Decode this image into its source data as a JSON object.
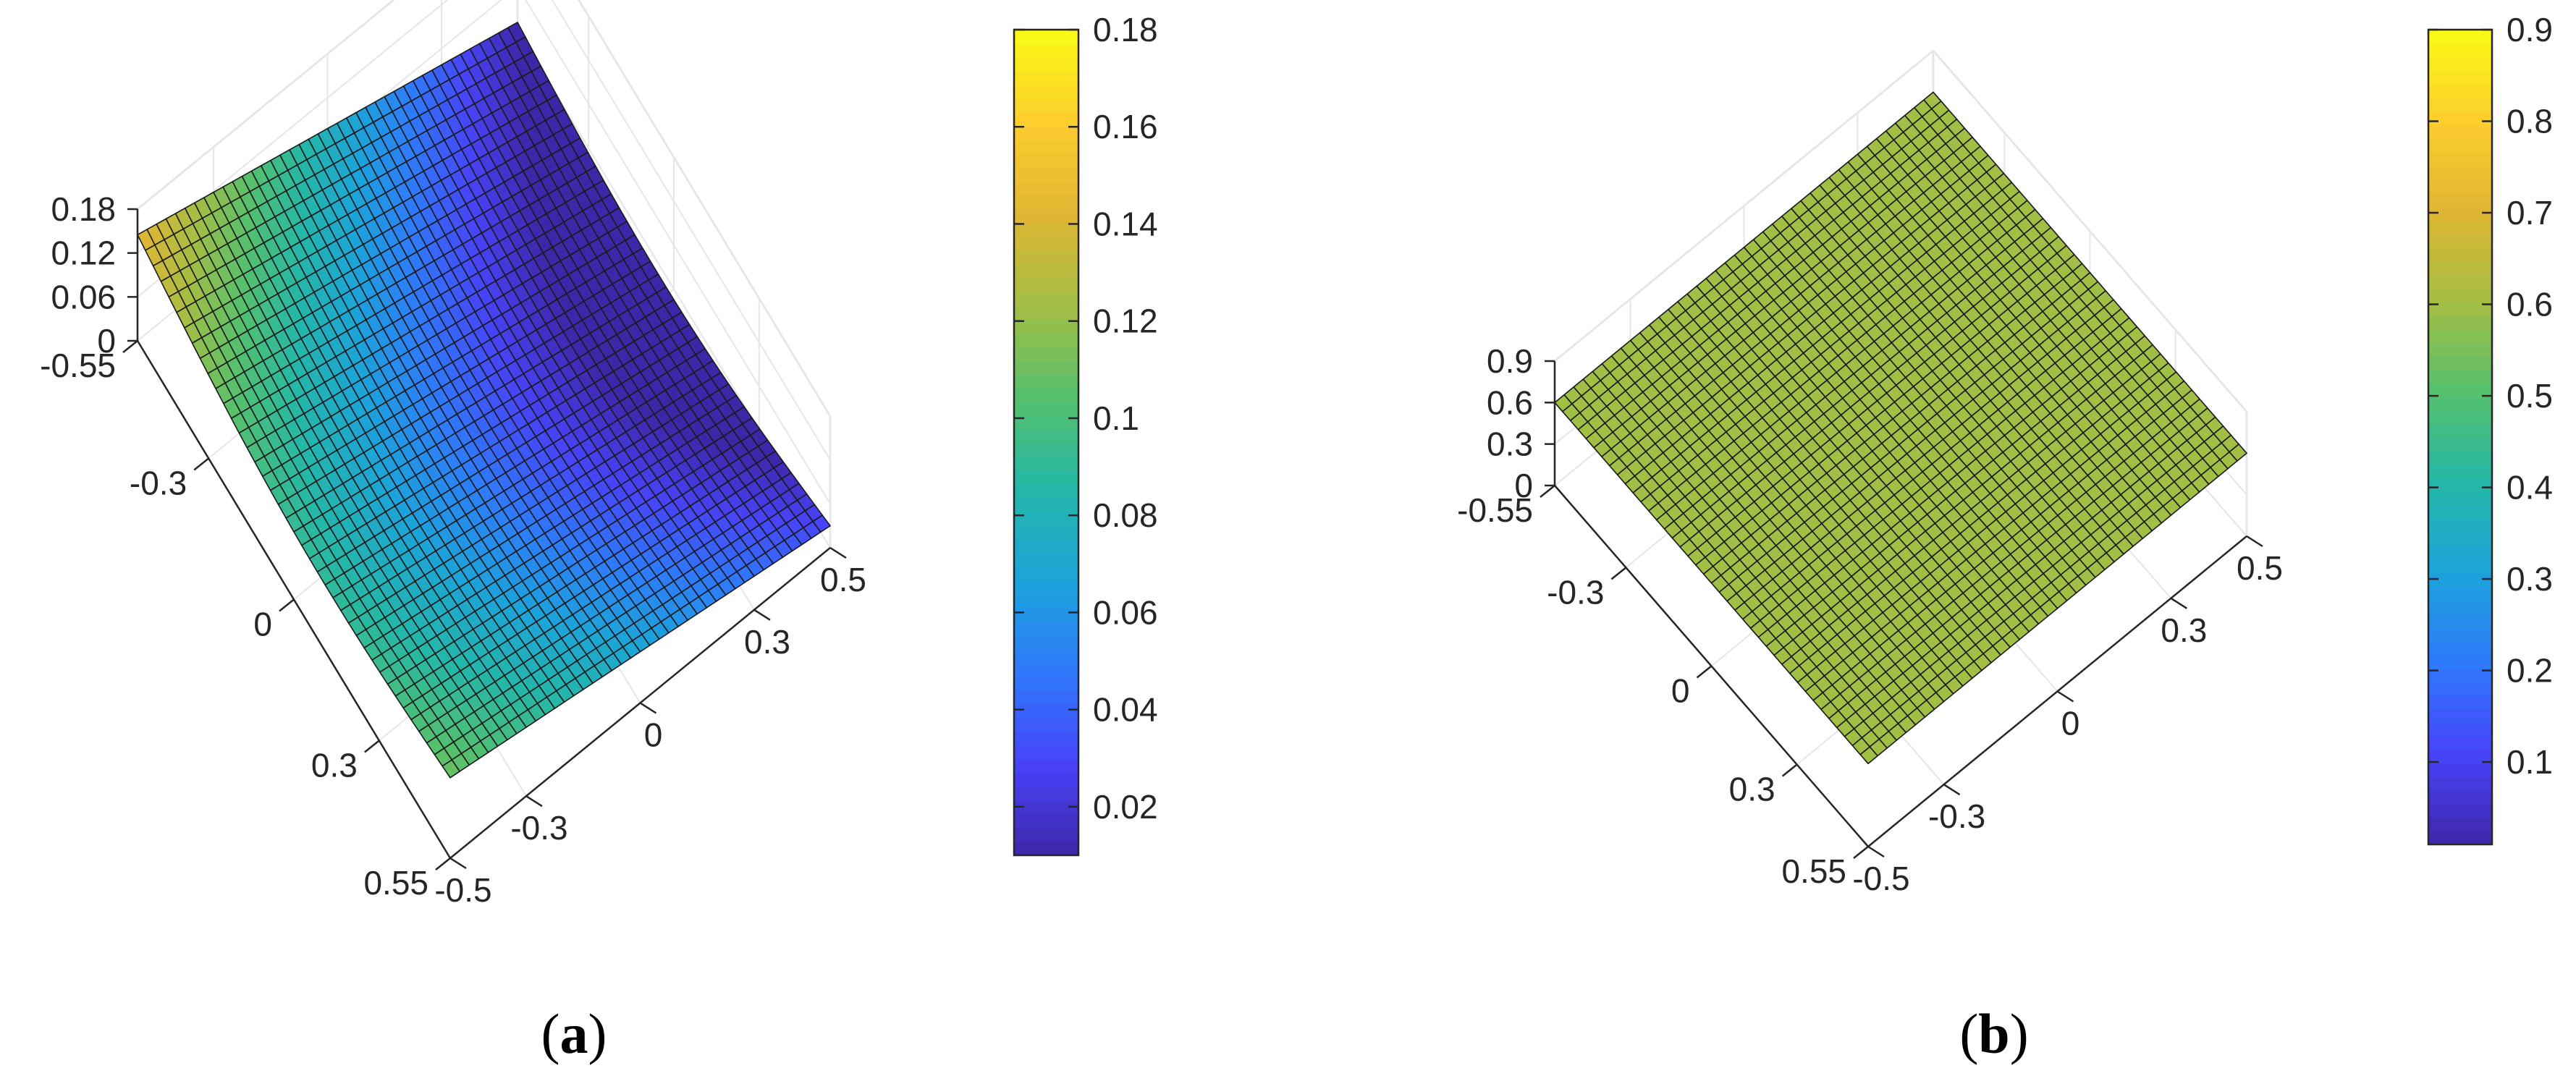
{
  "figure": {
    "colormap": [
      "#3e26a8",
      "#4743f8",
      "#2f79fc",
      "#1ca3da",
      "#24b7a8",
      "#55c06d",
      "#a4be44",
      "#e0b633",
      "#fcce2e",
      "#f9fb15"
    ],
    "panels": [
      {
        "label_open": "(",
        "label_letter": "a",
        "label_close": ")"
      },
      {
        "label_open": "(",
        "label_letter": "b",
        "label_close": ")"
      }
    ]
  },
  "chart_data": [
    {
      "type": "surface",
      "panel": "a",
      "x_ticks": [
        "-0.55",
        "-0.3",
        "0",
        "0.3",
        "0.55"
      ],
      "y_ticks": [
        "-0.5",
        "-0.3",
        "0",
        "0.3",
        "0.5"
      ],
      "z_ticks": [
        "0",
        "0.06",
        "0.12",
        "0.18"
      ],
      "x_range": [
        -0.55,
        0.55
      ],
      "y_range": [
        -0.5,
        0.5
      ],
      "zlim": [
        0,
        0.18
      ],
      "colorbar_ticks": [
        "0.02",
        "0.04",
        "0.06",
        "0.08",
        "0.1",
        "0.12",
        "0.14",
        "0.16",
        "0.18"
      ],
      "colorbar_range": [
        0.01,
        0.18
      ],
      "grid": true,
      "mesh_size": 40,
      "corner_values": {
        "x_min_y_min": 0.145,
        "x_min_y_max": 0.011,
        "x_max_y_min": 0.11,
        "x_max_y_max": 0.03
      },
      "saddle_ridge": 0.035
    },
    {
      "type": "surface",
      "panel": "b",
      "x_ticks": [
        "-0.55",
        "-0.3",
        "0",
        "0.3",
        "0.55"
      ],
      "y_ticks": [
        "-0.5",
        "-0.3",
        "0",
        "0.3",
        "0.5"
      ],
      "z_ticks": [
        "0",
        "0.3",
        "0.6",
        "0.9"
      ],
      "x_range": [
        -0.55,
        0.55
      ],
      "y_range": [
        -0.5,
        0.5
      ],
      "zlim": [
        0,
        0.9
      ],
      "colorbar_ticks": [
        "0.1",
        "0.2",
        "0.3",
        "0.4",
        "0.5",
        "0.6",
        "0.7",
        "0.8",
        "0.9"
      ],
      "colorbar_range": [
        0.01,
        0.9
      ],
      "grid": true,
      "mesh_size": 40,
      "corner_values": {
        "x_min_y_min": 0.6,
        "x_min_y_max": 0.6,
        "x_max_y_min": 0.6,
        "x_max_y_max": 0.6
      },
      "saddle_ridge": 0
    }
  ]
}
